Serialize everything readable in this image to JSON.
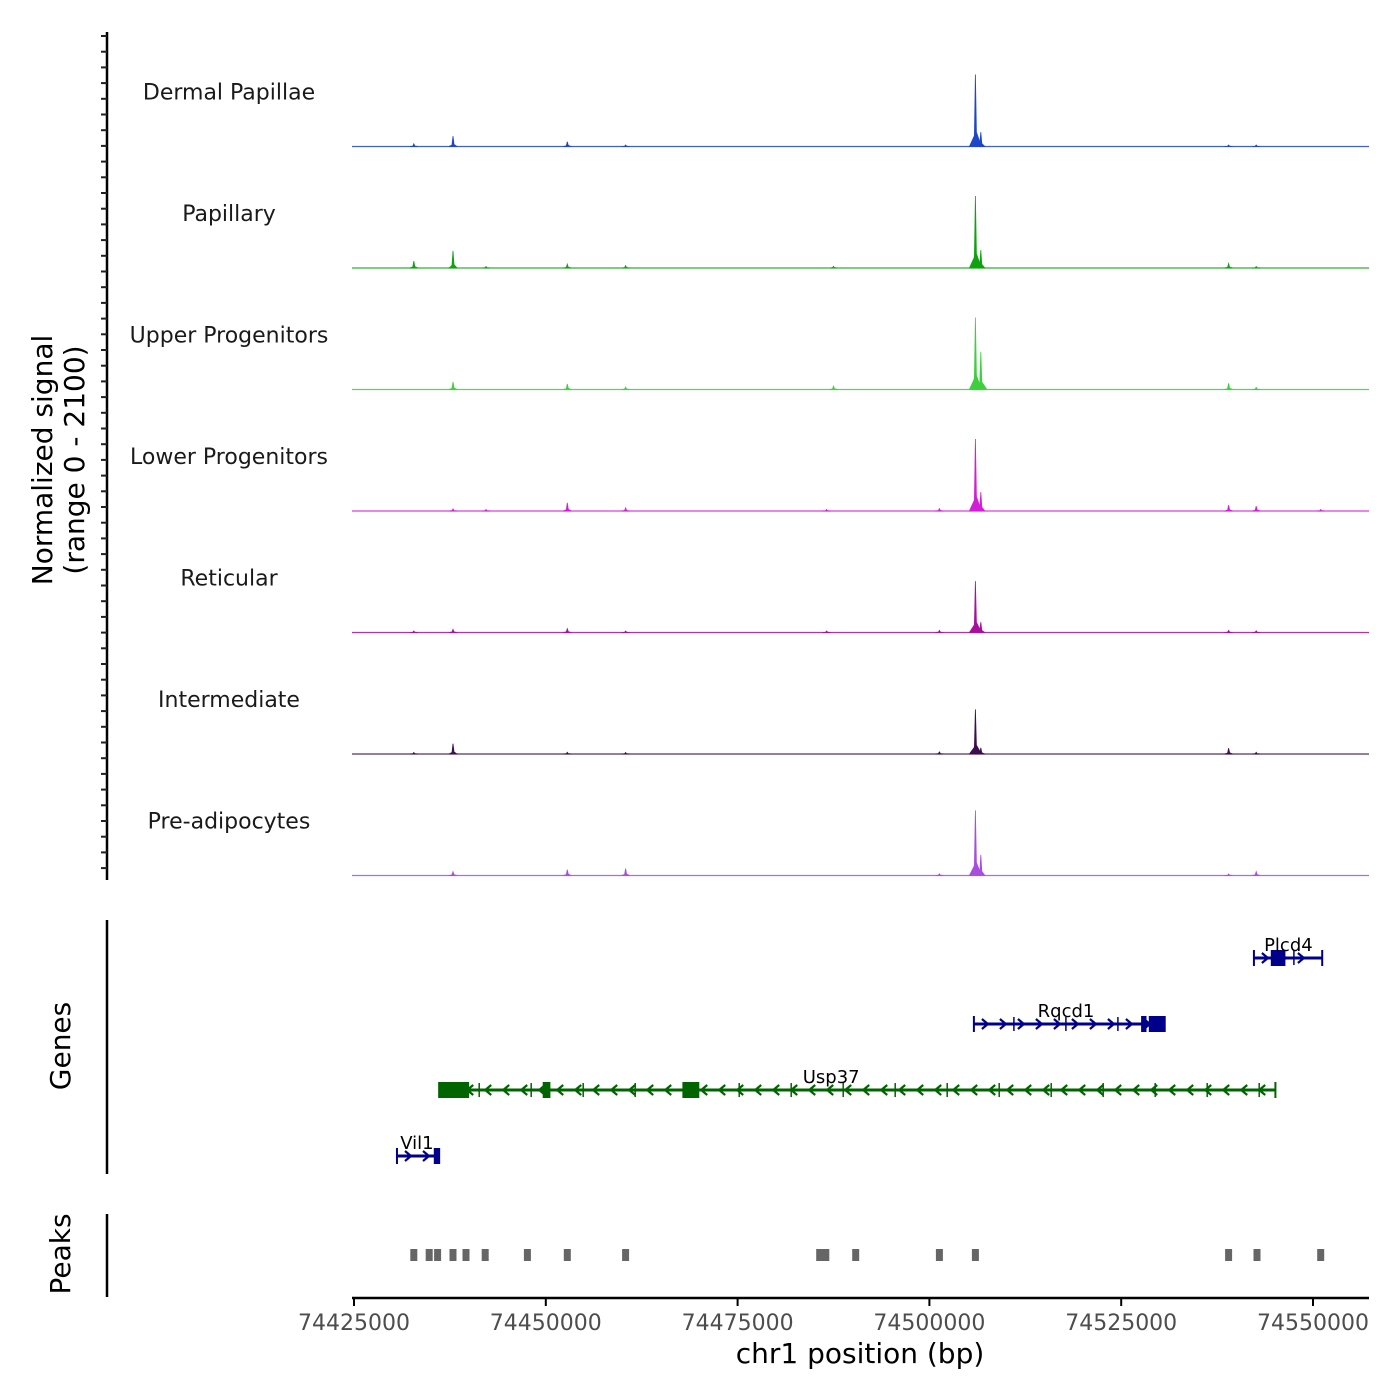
{
  "chart_data": {
    "type": "area",
    "title": "",
    "chromosome": "chr1",
    "xlabel": "chr1 position (bp)",
    "xlim": [
      74424500,
      74555500
    ],
    "x_ticks": [
      74425000,
      74450000,
      74475000,
      74500000,
      74525000,
      74550000
    ],
    "x_tick_labels": [
      "74425000",
      "74450000",
      "74475000",
      "74500000",
      "74525000",
      "74550000"
    ],
    "signal_axis": {
      "ylabel_line1": "Normalized signal",
      "ylabel_line2": "(range 0 - 2100)",
      "ylim": [
        0,
        2100
      ]
    },
    "series": [
      {
        "name": "Dermal Papillae",
        "color": "#1f45c9",
        "peaks": [
          [
            74432800,
            80
          ],
          [
            74437900,
            300
          ],
          [
            74452800,
            140
          ],
          [
            74460400,
            40
          ],
          [
            74506000,
            2100
          ],
          [
            74506700,
            420
          ],
          [
            74539000,
            40
          ],
          [
            74542600,
            35
          ]
        ]
      },
      {
        "name": "Papillary",
        "color": "#0fa20f",
        "peaks": [
          [
            74432800,
            200
          ],
          [
            74437900,
            500
          ],
          [
            74442200,
            30
          ],
          [
            74452800,
            110
          ],
          [
            74460400,
            70
          ],
          [
            74487500,
            50
          ],
          [
            74506000,
            2100
          ],
          [
            74506700,
            520
          ],
          [
            74539000,
            130
          ],
          [
            74542600,
            30
          ]
        ]
      },
      {
        "name": "Upper Progenitors",
        "color": "#3ecf3e",
        "peaks": [
          [
            74437900,
            220
          ],
          [
            74452800,
            160
          ],
          [
            74460400,
            70
          ],
          [
            74487500,
            100
          ],
          [
            74506000,
            2100
          ],
          [
            74506700,
            1100
          ],
          [
            74539000,
            180
          ],
          [
            74542600,
            60
          ]
        ]
      },
      {
        "name": "Lower Progenitors",
        "color": "#d21fd6",
        "peaks": [
          [
            74437900,
            60
          ],
          [
            74442200,
            30
          ],
          [
            74452800,
            240
          ],
          [
            74460400,
            90
          ],
          [
            74486600,
            40
          ],
          [
            74501300,
            70
          ],
          [
            74506000,
            2100
          ],
          [
            74506700,
            550
          ],
          [
            74539000,
            170
          ],
          [
            74542600,
            140
          ],
          [
            74551000,
            25
          ]
        ]
      },
      {
        "name": "Reticular",
        "color": "#a90f9f",
        "peaks": [
          [
            74432800,
            25
          ],
          [
            74437900,
            90
          ],
          [
            74452800,
            110
          ],
          [
            74460400,
            40
          ],
          [
            74486600,
            40
          ],
          [
            74501300,
            60
          ],
          [
            74506000,
            1500
          ],
          [
            74506700,
            300
          ],
          [
            74539000,
            60
          ],
          [
            74542600,
            50
          ]
        ]
      },
      {
        "name": "Intermediate",
        "color": "#3c0e4d",
        "peaks": [
          [
            74432800,
            30
          ],
          [
            74437900,
            300
          ],
          [
            74452800,
            50
          ],
          [
            74460400,
            40
          ],
          [
            74501300,
            60
          ],
          [
            74506000,
            1300
          ],
          [
            74506700,
            180
          ],
          [
            74539000,
            170
          ],
          [
            74542600,
            50
          ]
        ]
      },
      {
        "name": "Pre-adipocytes",
        "color": "#a64ee0",
        "peaks": [
          [
            74437900,
            110
          ],
          [
            74452800,
            170
          ],
          [
            74460400,
            200
          ],
          [
            74501300,
            50
          ],
          [
            74506000,
            1900
          ],
          [
            74506700,
            600
          ],
          [
            74539000,
            40
          ],
          [
            74542600,
            110
          ]
        ]
      }
    ],
    "genes_axis_label": "Genes",
    "genes": [
      {
        "name": "Vil1",
        "strand": "+",
        "start": 74430600,
        "end": 74436100,
        "row": 3,
        "color": "#00008b",
        "exons": [
          [
            74435400,
            74436100
          ]
        ],
        "label_x": 74433200
      },
      {
        "name": "Usp37",
        "strand": "-",
        "start": 74436100,
        "end": 74545100,
        "row": 2,
        "color": "#006400",
        "exons": [
          [
            74436200,
            74440000
          ],
          [
            74449600,
            74450600
          ],
          [
            74467800,
            74470000
          ]
        ],
        "label_x": 74487200
      },
      {
        "name": "Rqcd1",
        "strand": "+",
        "start": 74505800,
        "end": 74529500,
        "row": 1,
        "color": "#00008b",
        "exons": [
          [
            74527600,
            74528300
          ],
          [
            74528600,
            74530800
          ]
        ],
        "label_x": 74517800
      },
      {
        "name": "Plcd4",
        "strand": "+",
        "start": 74542300,
        "end": 74551200,
        "row": 0,
        "color": "#00008b",
        "exons": [
          [
            74544500,
            74546400
          ]
        ],
        "label_x": 74546800
      }
    ],
    "peaks_axis_label": "Peaks",
    "peak_regions": [
      74432800,
      74434800,
      74435900,
      74437900,
      74439600,
      74442100,
      74447600,
      74452800,
      74460400,
      74485700,
      74486500,
      74490400,
      74501300,
      74506000,
      74539000,
      74542700,
      74551000
    ],
    "peak_color": "#666666"
  }
}
